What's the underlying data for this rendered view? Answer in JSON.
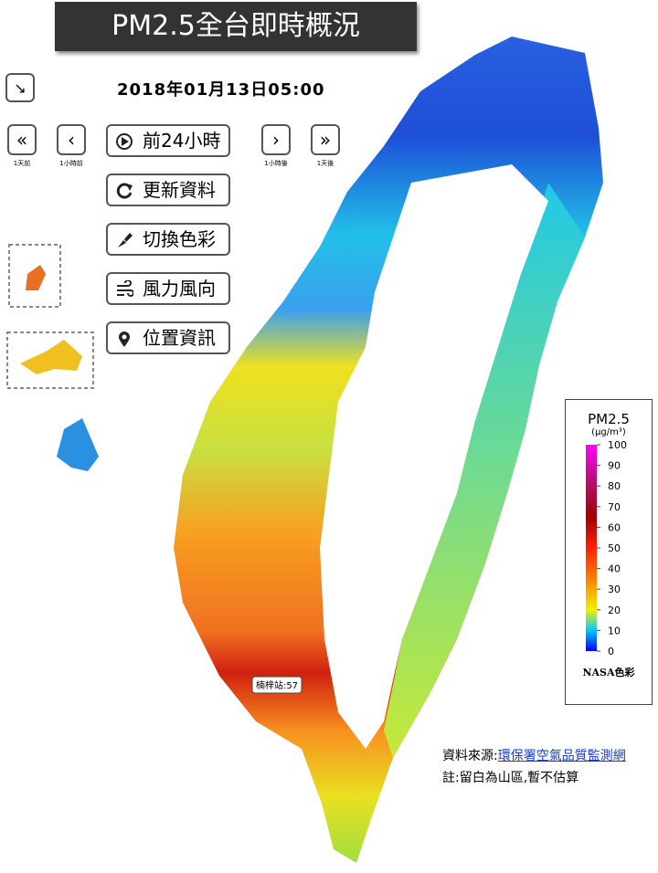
{
  "header": {
    "title": "PM2.5全台即時概況",
    "datetime": "2018年01月13日05:00"
  },
  "controls": {
    "nav": [
      {
        "symbol": "«",
        "label": "1天前"
      },
      {
        "symbol": "‹",
        "label": "1小時前"
      },
      {
        "symbol": "›",
        "label": "1小時後"
      },
      {
        "symbol": "»",
        "label": "1天後"
      }
    ],
    "buttons": [
      "前24小時",
      "更新資料",
      "切換色彩",
      "風力風向",
      "位置資訊"
    ]
  },
  "legend": {
    "title": "PM2.5",
    "unit": "(μg/m³)",
    "ticks": [
      0,
      10,
      20,
      30,
      40,
      50,
      60,
      70,
      80,
      90,
      100
    ],
    "footer": "NASA色彩"
  },
  "station_label": "楠梓站:57",
  "source": {
    "label": "資料來源:",
    "link": "環保署空氣品質監測網",
    "note": "註:留白為山區,暫不估算"
  }
}
